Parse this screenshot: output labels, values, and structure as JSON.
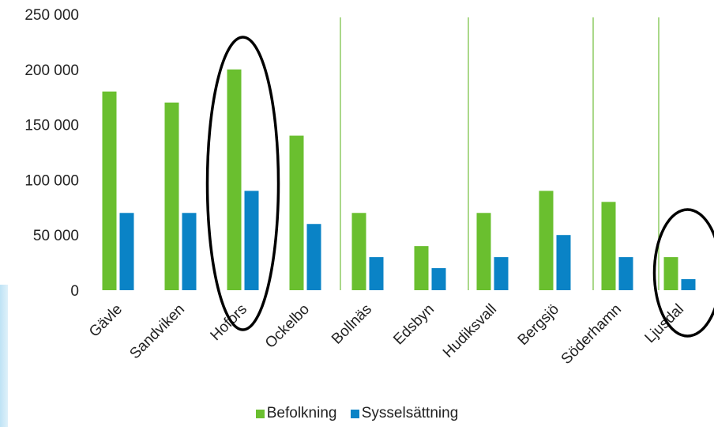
{
  "chart_data": {
    "type": "bar",
    "categories": [
      "Gävle",
      "Sandviken",
      "Hofors",
      "Ockelbo",
      "Bollnäs",
      "Edsbyn",
      "Hudiksvall",
      "Bergsjö",
      "Söderhamn",
      "Ljusdal"
    ],
    "series": [
      {
        "name": "Befolkning",
        "color": "#6abf2f",
        "values": [
          180000,
          170000,
          200000,
          140000,
          70000,
          40000,
          70000,
          90000,
          80000,
          30000
        ]
      },
      {
        "name": "Sysselsättning",
        "color": "#0a83c6",
        "values": [
          70000,
          70000,
          90000,
          60000,
          30000,
          20000,
          30000,
          50000,
          30000,
          10000
        ]
      }
    ],
    "yticks": [
      "0",
      "50 000",
      "100 000",
      "150 000",
      "200 000",
      "250 000"
    ],
    "ylim": [
      0,
      250000
    ],
    "legend_position": "bottom",
    "highlighted_categories": [
      "Hofors",
      "Ljusdal"
    ]
  }
}
